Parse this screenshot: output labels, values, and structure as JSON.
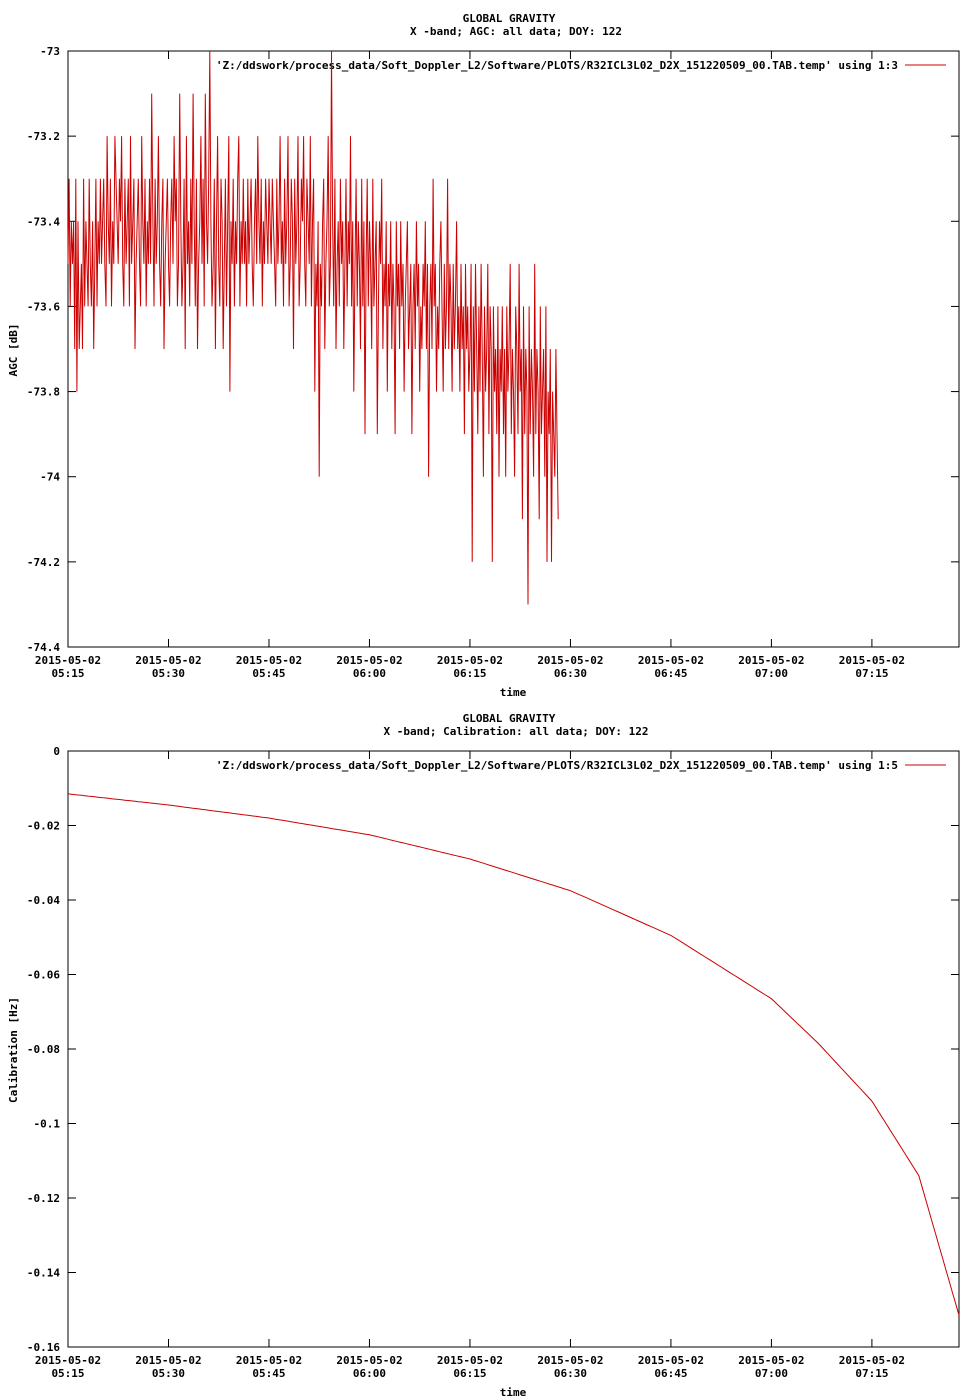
{
  "chart_data": [
    {
      "type": "line",
      "title": "GLOBAL GRAVITY",
      "subtitle": "X -band; AGC: all data; DOY: 122",
      "xlabel": "time",
      "ylabel": "AGC [dB]",
      "ylim": [
        -74.4,
        -73.0
      ],
      "yticks": [
        -73,
        -73.2,
        -73.4,
        -73.6,
        -73.8,
        -74,
        -74.2,
        -74.4
      ],
      "ytick_labels": [
        "-73",
        "-73.2",
        "-73.4",
        "-73.6",
        "-73.8",
        "-74",
        "-74.2",
        "-74.4"
      ],
      "xlim": [
        "2015-05-02 05:15",
        "2015-05-02 07:28"
      ],
      "xticks": [
        "05:15",
        "05:30",
        "05:45",
        "06:00",
        "06:15",
        "06:30",
        "06:45",
        "07:00",
        "07:15"
      ],
      "xtick_date": "2015-05-02",
      "grid": false,
      "legend_position": "top-right",
      "series": [
        {
          "name": "'Z:/ddswork/process_data/Soft_Doppler_L2/Software/PLOTS/R32ICL3L02_D2X_151220509_00.TAB.temp' using 1:3",
          "color": "#cc0000",
          "step_seconds": 10,
          "values": [
            -73.5,
            -73.3,
            -73.6,
            -73.4,
            -73.5,
            -73.4,
            -73.7,
            -73.3,
            -73.8,
            -73.4,
            -73.7,
            -73.6,
            -73.5,
            -73.7,
            -73.3,
            -73.6,
            -73.4,
            -73.5,
            -73.6,
            -73.3,
            -73.5,
            -73.6,
            -73.4,
            -73.7,
            -73.5,
            -73.3,
            -73.6,
            -73.4,
            -73.5,
            -73.3,
            -73.5,
            -73.4,
            -73.3,
            -73.5,
            -73.6,
            -73.2,
            -73.4,
            -73.5,
            -73.3,
            -73.6,
            -73.4,
            -73.5,
            -73.2,
            -73.3,
            -73.4,
            -73.5,
            -73.3,
            -73.4,
            -73.2,
            -73.5,
            -73.6,
            -73.3,
            -73.5,
            -73.4,
            -73.3,
            -73.6,
            -73.2,
            -73.5,
            -73.4,
            -73.3,
            -73.7,
            -73.5,
            -73.4,
            -73.3,
            -73.5,
            -73.6,
            -73.2,
            -73.4,
            -73.5,
            -73.3,
            -73.6,
            -73.4,
            -73.5,
            -73.3,
            -73.5,
            -73.1,
            -73.4,
            -73.6,
            -73.3,
            -73.5,
            -73.4,
            -73.2,
            -73.5,
            -73.6,
            -73.4,
            -73.3,
            -73.7,
            -73.5,
            -73.4,
            -73.3,
            -73.5,
            -73.6,
            -73.4,
            -73.3,
            -73.5,
            -73.2,
            -73.4,
            -73.3,
            -73.6,
            -73.5,
            -73.1,
            -73.4,
            -73.6,
            -73.5,
            -73.3,
            -73.7,
            -73.2,
            -73.5,
            -73.4,
            -73.6,
            -73.3,
            -73.5,
            -73.1,
            -73.4,
            -73.6,
            -73.3,
            -73.7,
            -73.5,
            -73.4,
            -73.2,
            -73.5,
            -73.3,
            -73.6,
            -73.1,
            -73.4,
            -73.5,
            -73.3,
            -73.0,
            -73.4,
            -73.6,
            -73.5,
            -73.3,
            -73.7,
            -73.4,
            -73.2,
            -73.5,
            -73.6,
            -73.3,
            -73.4,
            -73.7,
            -73.5,
            -73.3,
            -73.6,
            -73.4,
            -73.2,
            -73.8,
            -73.4,
            -73.5,
            -73.3,
            -73.6,
            -73.4,
            -73.5,
            -73.3,
            -73.2,
            -73.6,
            -73.4,
            -73.5,
            -73.3,
            -73.5,
            -73.4,
            -73.6,
            -73.3,
            -73.5,
            -73.4,
            -73.3,
            -73.5,
            -73.6,
            -73.4,
            -73.3,
            -73.5,
            -73.2,
            -73.4,
            -73.5,
            -73.3,
            -73.6,
            -73.4,
            -73.5,
            -73.3,
            -73.4,
            -73.5,
            -73.3,
            -73.4,
            -73.5,
            -73.3,
            -73.4,
            -73.5,
            -73.6,
            -73.3,
            -73.5,
            -73.4,
            -73.2,
            -73.5,
            -73.4,
            -73.6,
            -73.3,
            -73.5,
            -73.4,
            -73.2,
            -73.6,
            -73.5,
            -73.3,
            -73.4,
            -73.7,
            -73.3,
            -73.5,
            -73.4,
            -73.2,
            -73.6,
            -73.5,
            -73.3,
            -73.4,
            -73.2,
            -73.5,
            -73.6,
            -73.3,
            -73.4,
            -73.5,
            -73.2,
            -73.6,
            -73.4,
            -73.3,
            -73.8,
            -73.5,
            -73.6,
            -73.4,
            -74.0,
            -73.5,
            -73.6,
            -73.4,
            -73.3,
            -73.7,
            -73.5,
            -73.4,
            -73.2,
            -73.6,
            -73.5,
            -73.0,
            -73.4,
            -73.6,
            -73.3,
            -73.7,
            -73.5,
            -73.4,
            -73.6,
            -73.3,
            -73.5,
            -73.4,
            -73.7,
            -73.5,
            -73.3,
            -73.6,
            -73.4,
            -73.5,
            -73.2,
            -73.6,
            -73.4,
            -73.8,
            -73.5,
            -73.3,
            -73.6,
            -73.4,
            -73.5,
            -73.7,
            -73.3,
            -73.6,
            -73.4,
            -73.9,
            -73.5,
            -73.3,
            -73.6,
            -73.4,
            -73.5,
            -73.7,
            -73.3,
            -73.6,
            -73.5,
            -73.4,
            -73.9,
            -73.6,
            -73.4,
            -73.5,
            -73.3,
            -73.7,
            -73.5,
            -73.6,
            -73.4,
            -73.8,
            -73.5,
            -73.6,
            -73.4,
            -73.7,
            -73.5,
            -73.6,
            -73.9,
            -73.4,
            -73.6,
            -73.5,
            -73.7,
            -73.4,
            -73.6,
            -73.5,
            -73.8,
            -73.6,
            -73.5,
            -73.4,
            -73.7,
            -73.6,
            -73.5,
            -73.9,
            -73.6,
            -73.5,
            -73.7,
            -73.4,
            -73.6,
            -73.5,
            -73.8,
            -73.6,
            -73.7,
            -73.5,
            -73.6,
            -73.4,
            -73.7,
            -73.5,
            -74.0,
            -73.6,
            -73.5,
            -73.7,
            -73.3,
            -73.6,
            -73.5,
            -73.8,
            -73.6,
            -73.7,
            -73.5,
            -73.4,
            -73.6,
            -73.8,
            -73.5,
            -73.7,
            -73.6,
            -73.3,
            -73.7,
            -73.5,
            -73.6,
            -73.8,
            -73.5,
            -73.7,
            -73.6,
            -73.4,
            -73.7,
            -73.6,
            -73.8,
            -73.5,
            -73.7,
            -73.6,
            -73.9,
            -73.5,
            -73.7,
            -73.6,
            -73.8,
            -73.7,
            -73.5,
            -74.2,
            -73.6,
            -73.8,
            -73.5,
            -73.7,
            -73.9,
            -73.6,
            -73.8,
            -73.5,
            -73.7,
            -74.0,
            -73.6,
            -73.8,
            -73.7,
            -73.5,
            -73.9,
            -73.6,
            -73.7,
            -74.2,
            -73.6,
            -73.8,
            -73.7,
            -73.9,
            -73.6,
            -74.0,
            -73.7,
            -73.8,
            -73.6,
            -73.9,
            -73.7,
            -74.0,
            -73.6,
            -73.8,
            -73.7,
            -73.5,
            -73.9,
            -73.7,
            -73.8,
            -74.0,
            -73.6,
            -73.7,
            -73.9,
            -73.5,
            -73.8,
            -73.7,
            -74.1,
            -73.6,
            -73.9,
            -73.7,
            -73.8,
            -74.3,
            -73.6,
            -73.9,
            -73.7,
            -73.8,
            -74.0,
            -73.5,
            -73.9,
            -73.7,
            -73.8,
            -74.1,
            -73.6,
            -73.9,
            -73.8,
            -73.7,
            -74.0,
            -73.6,
            -74.2,
            -73.8,
            -73.9,
            -73.7,
            -74.2,
            -73.8,
            -73.9,
            -74.0,
            -73.7,
            -73.9,
            -74.1
          ]
        }
      ]
    },
    {
      "type": "line",
      "title": "GLOBAL GRAVITY",
      "subtitle": "X -band; Calibration: all data; DOY: 122",
      "xlabel": "time",
      "ylabel": "Calibration [Hz]",
      "ylim": [
        -0.16,
        0
      ],
      "yticks": [
        0,
        -0.02,
        -0.04,
        -0.06,
        -0.08,
        -0.1,
        -0.12,
        -0.14,
        -0.16
      ],
      "ytick_labels": [
        "0",
        "-0.02",
        "-0.04",
        "-0.06",
        "-0.08",
        "-0.1",
        "-0.12",
        "-0.14",
        "-0.16"
      ],
      "xlim": [
        "2015-05-02 05:15",
        "2015-05-02 07:28"
      ],
      "xticks": [
        "05:15",
        "05:30",
        "05:45",
        "06:00",
        "06:15",
        "06:30",
        "06:45",
        "07:00",
        "07:15"
      ],
      "xtick_date": "2015-05-02",
      "grid": false,
      "legend_position": "top-right",
      "series": [
        {
          "name": "'Z:/ddswork/process_data/Soft_Doppler_L2/Software/PLOTS/R32ICL3L02_D2X_151220509_00.TAB.temp' using 1:5",
          "color": "#cc0000",
          "x": [
            "05:15",
            "05:30",
            "05:45",
            "06:00",
            "06:15",
            "06:30",
            "06:45",
            "07:00",
            "07:07",
            "07:15",
            "07:22",
            "07:28"
          ],
          "values": [
            -0.0115,
            -0.0145,
            -0.018,
            -0.0225,
            -0.029,
            -0.0375,
            -0.0495,
            -0.0665,
            -0.0785,
            -0.094,
            -0.114,
            -0.1515
          ]
        }
      ]
    }
  ]
}
